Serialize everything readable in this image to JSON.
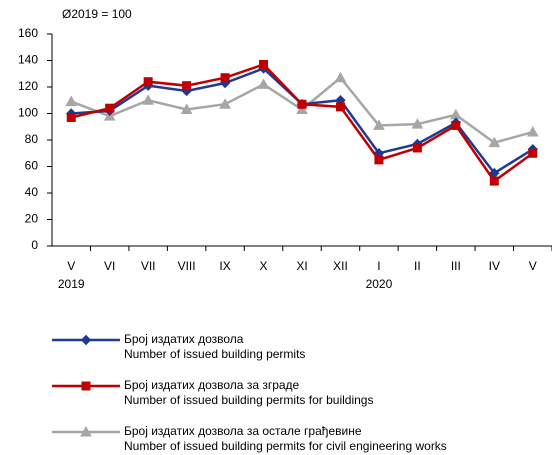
{
  "chart_data": {
    "type": "line",
    "annotation": "Ø2019 = 100",
    "categories": [
      "V",
      "VI",
      "VII",
      "VIII",
      "IX",
      "X",
      "XI",
      "XII",
      "I",
      "II",
      "III",
      "IV",
      "V"
    ],
    "x_group_labels": [
      "2019",
      null,
      null,
      null,
      null,
      null,
      null,
      null,
      "2020",
      null,
      null,
      null,
      null
    ],
    "ylim": [
      0,
      160
    ],
    "yticks": [
      0,
      20,
      40,
      60,
      80,
      100,
      120,
      140,
      160
    ],
    "grid": false,
    "series": [
      {
        "name": [
          "Број издатих дозвола",
          "Number  of  issued building permits"
        ],
        "color": "#1f3a93",
        "marker": "diamond",
        "values": [
          100,
          102,
          121,
          117,
          123,
          134,
          107,
          110,
          70,
          77,
          93,
          55,
          73
        ]
      },
      {
        "name": [
          "Број издатих дозвола за зграде",
          "Number  of  issued building permits for buildings"
        ],
        "color": "#c00000",
        "marker": "square",
        "values": [
          97,
          104,
          124,
          121,
          127,
          137,
          107,
          105,
          65,
          74,
          91,
          49,
          70
        ]
      },
      {
        "name": [
          "Број издатих дозвола за остале грађевине",
          "Number  of  issued building permits for civil engineering works"
        ],
        "color": "#a6a6a6",
        "marker": "triangle",
        "values": [
          109,
          98,
          110,
          103,
          107,
          122,
          103,
          127,
          91,
          92,
          99,
          78,
          86
        ]
      }
    ]
  }
}
